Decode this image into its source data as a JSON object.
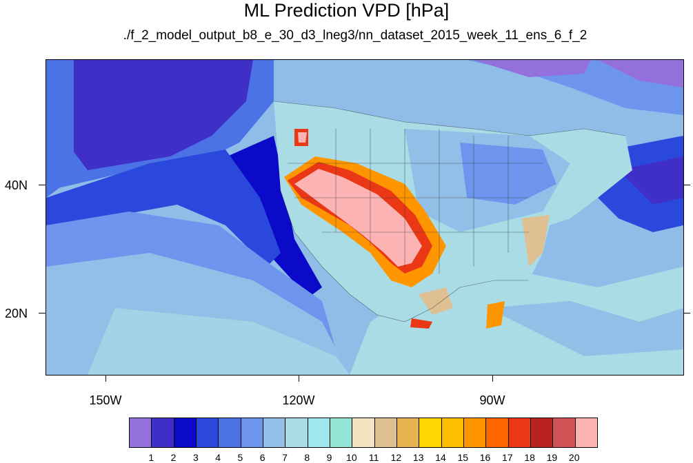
{
  "title": "ML Prediction VPD [hPa]",
  "subtitle": "./f_2_model_output_b8_e_30_d3_lneg3/nn_dataset_2015_week_11_ens_6_f_2",
  "lat_labels": [
    "40N",
    "20N"
  ],
  "lon_labels": [
    "150W",
    "120W",
    "90W"
  ],
  "colorbar": {
    "labels": [
      "1",
      "2",
      "3",
      "4",
      "5",
      "6",
      "7",
      "8",
      "9",
      "10",
      "11",
      "12",
      "13",
      "14",
      "15",
      "16",
      "17",
      "18",
      "19",
      "20"
    ],
    "colors": [
      "#9370db",
      "#3f2fc6",
      "#0a0ac8",
      "#2a48dc",
      "#4b73e6",
      "#6d95ee",
      "#92bfe8",
      "#aadce6",
      "#9fe6ee",
      "#95e6d6",
      "#f3e5c0",
      "#dfc092",
      "#e8b452",
      "#fdd800",
      "#ffbd00",
      "#ff9600",
      "#ff6600",
      "#ea3817",
      "#b82322",
      "#d05456",
      "#fbb3b3"
    ]
  },
  "colors": {
    "ocean_far": "#4b73e6",
    "ocean_deep": "#2a48dc",
    "ocean_mid": "#6d95ee",
    "ocean_light": "#92bfe8",
    "land_cool": "#aadce6",
    "desert_max": "#fbb3b3"
  }
}
